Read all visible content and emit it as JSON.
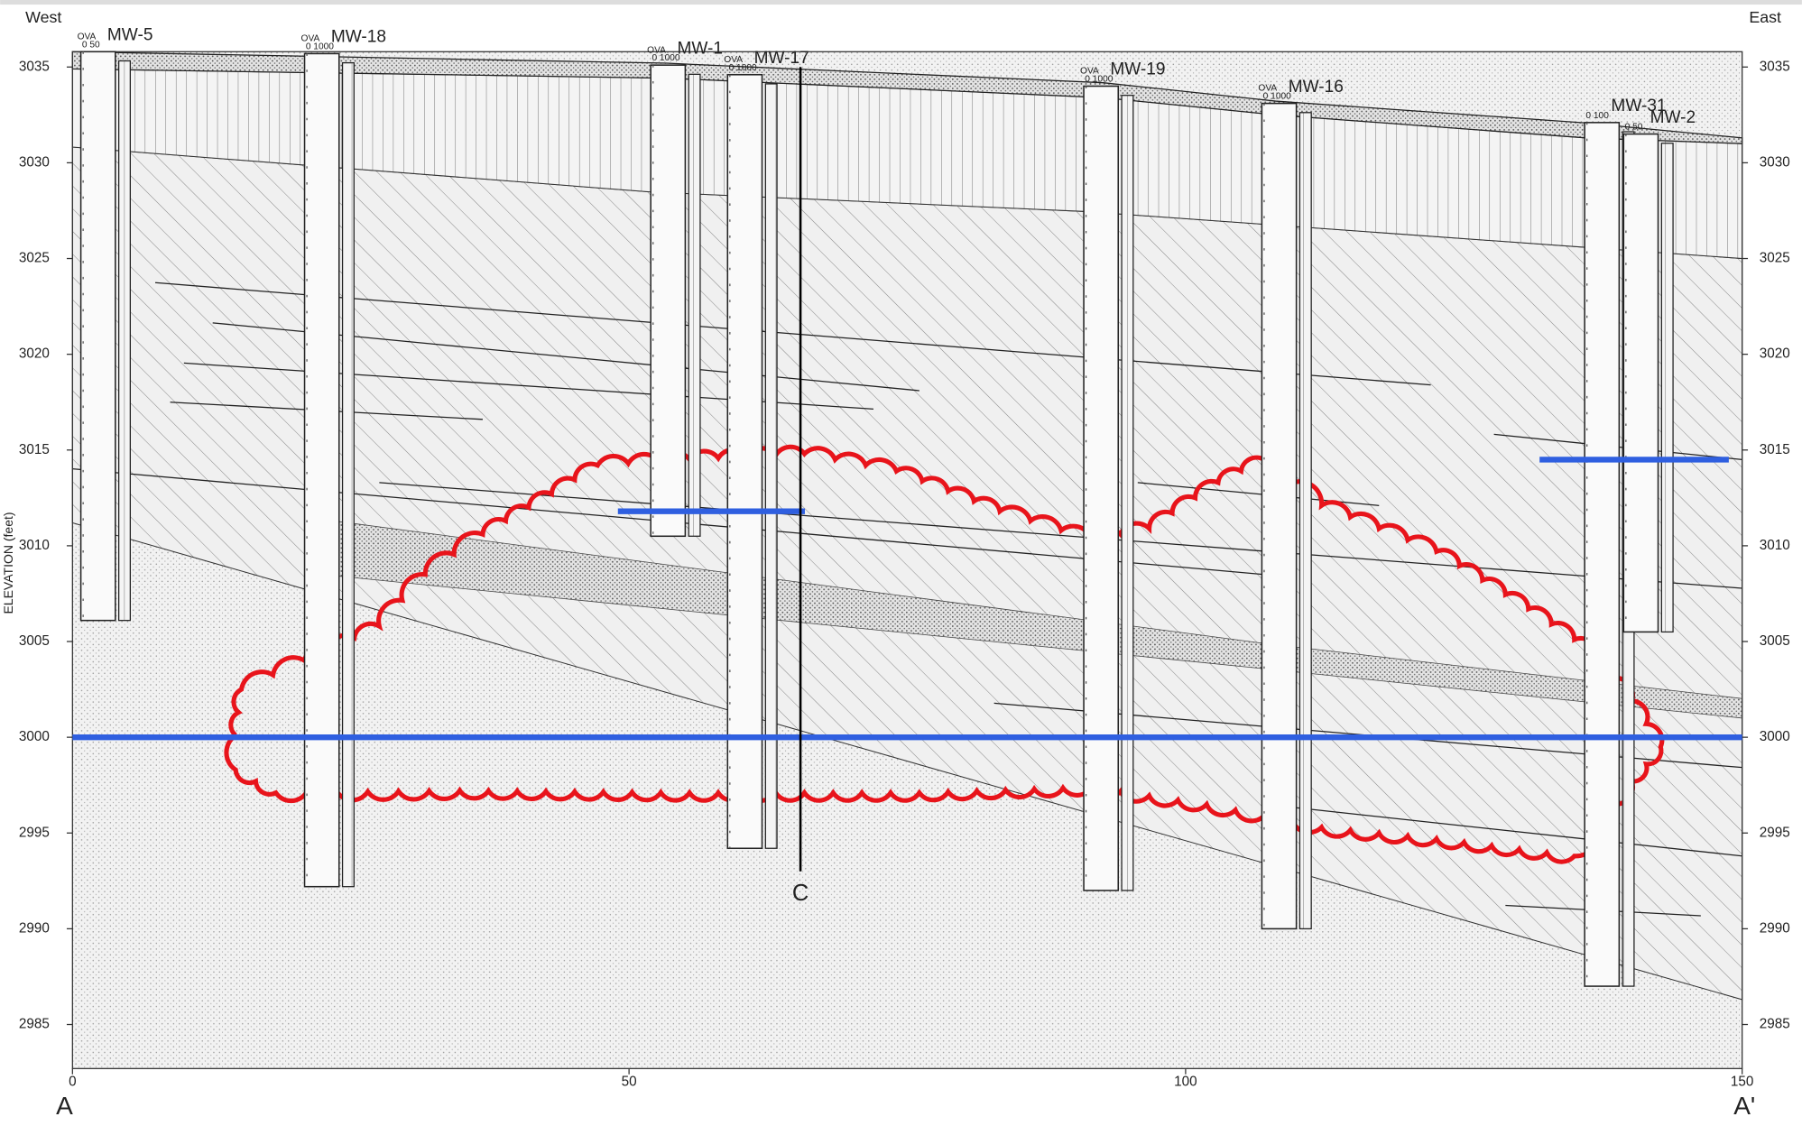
{
  "labels": {
    "west": "West",
    "east": "East",
    "start": "A",
    "end": "A'",
    "y_axis_title": "ELEVATION (feet)",
    "section_line": "C"
  },
  "axes": {
    "xlim": [
      0,
      150
    ],
    "xticks": [
      0,
      50,
      100,
      150
    ],
    "ylim": [
      2982.7,
      3035.8
    ],
    "yticks": [
      2985,
      2990,
      2995,
      3000,
      3005,
      3010,
      3015,
      3020,
      3025,
      3030,
      3035
    ]
  },
  "wells": [
    {
      "name": "MW-5",
      "x": 2.3,
      "top": 3035.8,
      "bottom": 3006.1,
      "ova_label": "OVA",
      "ova_scale": "0   50"
    },
    {
      "name": "MW-18",
      "x": 22.4,
      "top": 3035.7,
      "bottom": 2992.2,
      "ova_label": "OVA",
      "ova_scale": "0 1000"
    },
    {
      "name": "MW-1",
      "x": 53.5,
      "top": 3035.1,
      "bottom": 3010.5,
      "ova_label": "OVA",
      "ova_scale": "0 1000"
    },
    {
      "name": "MW-17",
      "x": 60.4,
      "top": 3034.6,
      "bottom": 2994.2,
      "ova_label": "OVA",
      "ova_scale": "0 1000"
    },
    {
      "name": "MW-19",
      "x": 92.4,
      "top": 3034.0,
      "bottom": 2992.0,
      "ova_label": "OVA",
      "ova_scale": "0 1000"
    },
    {
      "name": "MW-16",
      "x": 108.4,
      "top": 3033.1,
      "bottom": 2990.0,
      "ova_label": "OVA",
      "ova_scale": "0 1000"
    },
    {
      "name": "MW-31",
      "x": 137.4,
      "top": 3032.1,
      "bottom": 2987.0,
      "ova_label": "",
      "ova_scale": "0  100"
    },
    {
      "name": "MW-2",
      "x": 140.9,
      "top": 3031.5,
      "bottom": 3005.5,
      "ova_label": "",
      "ova_scale": "0   50"
    }
  ],
  "water_levels": [
    {
      "elevation": 3000,
      "x": [
        0,
        150
      ]
    },
    {
      "elevation": 3011.8,
      "x": [
        49,
        65.8
      ]
    },
    {
      "elevation": 3014.5,
      "x": [
        131.8,
        148.8
      ]
    }
  ],
  "section": {
    "x": 65.4,
    "top": 3035,
    "bottom": 2993
  }
}
